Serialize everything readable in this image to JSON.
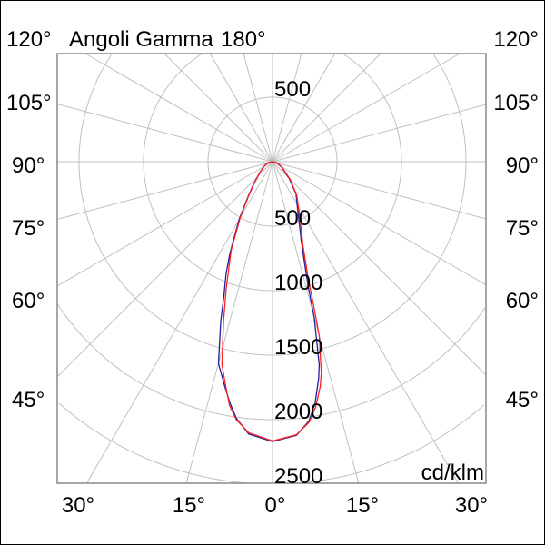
{
  "chart_data": {
    "type": "polar-line",
    "title": "Angoli Gamma",
    "unit_label": "cd/klm",
    "top_angle_label": "180°",
    "side_angle_labels": [
      "120°",
      "105°",
      "90°",
      "75°",
      "60°",
      "45°"
    ],
    "bottom_angle_labels": [
      "30°",
      "15°",
      "0°",
      "15°",
      "30°"
    ],
    "radial_tick_labels": [
      "500",
      "500",
      "1000",
      "1500",
      "2000",
      "2500"
    ],
    "radial_range": [
      0,
      2500
    ],
    "radial_step": 500,
    "angular_grid_step_deg": 15,
    "grid": true,
    "series": [
      {
        "color": "#2020a0",
        "left": [
          [
            0,
            2170
          ],
          [
            5,
            2120
          ],
          [
            8,
            2010
          ],
          [
            10,
            1900
          ],
          [
            12,
            1780
          ],
          [
            15,
            1620
          ],
          [
            18,
            1300
          ],
          [
            20,
            1100
          ],
          [
            22.5,
            940
          ],
          [
            25,
            780
          ],
          [
            30,
            520
          ],
          [
            35,
            330
          ],
          [
            40,
            230
          ],
          [
            50,
            130
          ],
          [
            60,
            80
          ],
          [
            70,
            50
          ],
          [
            80,
            25
          ],
          [
            90,
            0
          ]
        ],
        "right": [
          [
            0,
            2170
          ],
          [
            5,
            2130
          ],
          [
            8,
            2030
          ],
          [
            10,
            1900
          ],
          [
            12,
            1720
          ],
          [
            13,
            1610
          ],
          [
            15,
            1250
          ],
          [
            16,
            1000
          ],
          [
            17,
            880
          ],
          [
            20,
            650
          ],
          [
            25,
            480
          ],
          [
            30,
            380
          ],
          [
            36,
            310
          ],
          [
            45,
            180
          ],
          [
            60,
            80
          ],
          [
            75,
            35
          ],
          [
            90,
            0
          ]
        ]
      },
      {
        "color": "#ff2020",
        "left": [
          [
            0,
            2165
          ],
          [
            5,
            2110
          ],
          [
            8,
            2020
          ],
          [
            10,
            1920
          ],
          [
            12,
            1760
          ],
          [
            14,
            1620
          ],
          [
            17,
            1300
          ],
          [
            20,
            1050
          ],
          [
            25,
            760
          ],
          [
            30,
            500
          ],
          [
            35,
            320
          ],
          [
            40,
            220
          ],
          [
            50,
            125
          ],
          [
            60,
            75
          ],
          [
            70,
            45
          ],
          [
            80,
            22
          ],
          [
            90,
            0
          ]
        ],
        "right": [
          [
            0,
            2165
          ],
          [
            5,
            2125
          ],
          [
            8,
            2040
          ],
          [
            10,
            1930
          ],
          [
            12,
            1780
          ],
          [
            13,
            1680
          ],
          [
            15,
            1400
          ],
          [
            16,
            1150
          ],
          [
            17,
            950
          ],
          [
            20,
            690
          ],
          [
            25,
            510
          ],
          [
            30,
            400
          ],
          [
            36,
            320
          ],
          [
            45,
            190
          ],
          [
            60,
            85
          ],
          [
            75,
            38
          ],
          [
            90,
            0
          ]
        ]
      }
    ]
  }
}
